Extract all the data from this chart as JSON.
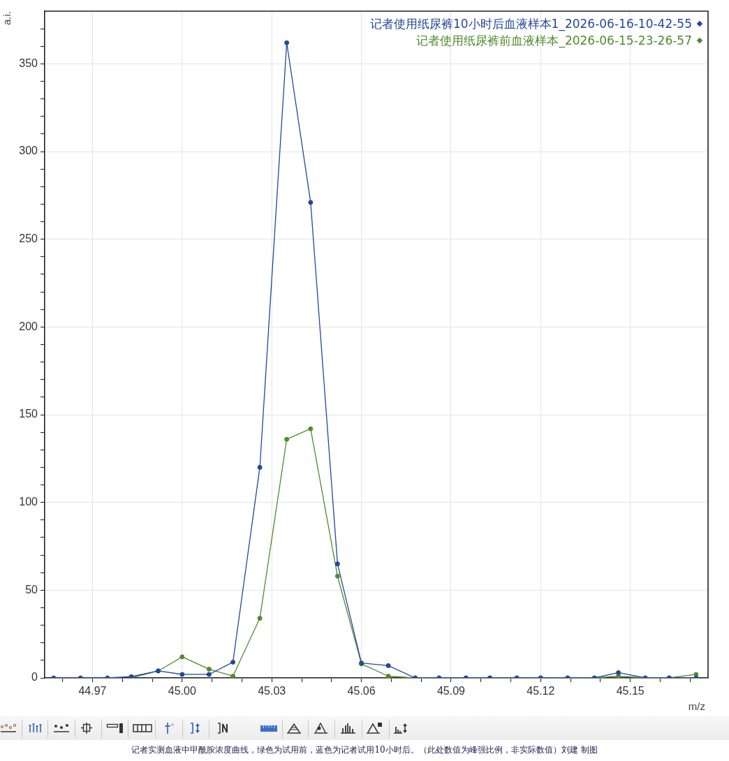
{
  "chart_data": {
    "type": "line",
    "ylabel": "a.i.",
    "xlabel": "m/z",
    "annotations": [
      "记者实测血液中甲酰胺浓度曲线，绿色为试用前，蓝色为记者试用10小时后。（此处数值为峰强比例，非实际数值）刘建 制图"
    ],
    "x": [
      44.957,
      44.966,
      44.975,
      44.983,
      44.992,
      45.0,
      45.009,
      45.017,
      45.026,
      45.035,
      45.043,
      45.052,
      45.06,
      45.069,
      45.078,
      45.086,
      45.095,
      45.103,
      45.112,
      45.12,
      45.129,
      45.138,
      45.146,
      45.155,
      45.163,
      45.172
    ],
    "series": [
      {
        "name": "记者使用纸尿裤10小时后血液样本1_2026-06-16-10-42-55",
        "color": "#23479a",
        "values": [
          0,
          0,
          0,
          0.7,
          4,
          2,
          2,
          9,
          120,
          362,
          271,
          65,
          8.5,
          7,
          0,
          0,
          0,
          0,
          0,
          0,
          0,
          0,
          3,
          0,
          0,
          0
        ]
      },
      {
        "name": "记者使用纸尿裤前血液样本_2026-06-15-23-26-57",
        "color": "#4f8c2d",
        "values": [
          null,
          null,
          null,
          0,
          4,
          12,
          5,
          1,
          34,
          136,
          142,
          58,
          8,
          1,
          0,
          0,
          0,
          0,
          0,
          0,
          0,
          0,
          1,
          0,
          0,
          2
        ]
      }
    ],
    "xlim": [
      44.954,
      45.176
    ],
    "ylim": [
      0,
      380
    ],
    "xticks": [
      {
        "value": 44.96,
        "label": null
      },
      44.97,
      {
        "value": 44.98,
        "label": null
      },
      {
        "value": 44.99,
        "label": null
      },
      {
        "value": 45,
        "label": "45.00"
      },
      {
        "value": 45.01,
        "label": null
      },
      {
        "value": 45.02,
        "label": null
      },
      45.03,
      {
        "value": 45.04,
        "label": null
      },
      {
        "value": 45.05,
        "label": null
      },
      45.06,
      {
        "value": 45.07,
        "label": null
      },
      {
        "value": 45.08,
        "label": null
      },
      45.09,
      {
        "value": 45.1,
        "label": null
      },
      {
        "value": 45.11,
        "label": null
      },
      45.12,
      {
        "value": 45.13,
        "label": null
      },
      {
        "value": 45.14,
        "label": null
      },
      45.15,
      {
        "value": 45.16,
        "label": null
      },
      {
        "value": 45.17,
        "label": null
      }
    ],
    "yticks": [
      0,
      {
        "value": 10,
        "label": null
      },
      {
        "value": 20,
        "label": null
      },
      {
        "value": 30,
        "label": null
      },
      {
        "value": 40,
        "label": null
      },
      50,
      {
        "value": 60,
        "label": null
      },
      {
        "value": 70,
        "label": null
      },
      {
        "value": 80,
        "label": null
      },
      {
        "value": 90,
        "label": null
      },
      100,
      {
        "value": 110,
        "label": null
      },
      {
        "value": 120,
        "label": null
      },
      {
        "value": 130,
        "label": null
      },
      {
        "value": 140,
        "label": null
      },
      150,
      {
        "value": 160,
        "label": null
      },
      {
        "value": 170,
        "label": null
      },
      {
        "value": 180,
        "label": null
      },
      {
        "value": 190,
        "label": null
      },
      200,
      {
        "value": 210,
        "label": null
      },
      {
        "value": 220,
        "label": null
      },
      {
        "value": 230,
        "label": null
      },
      {
        "value": 240,
        "label": null
      },
      250,
      {
        "value": 260,
        "label": null
      },
      {
        "value": 270,
        "label": null
      },
      {
        "value": 280,
        "label": null
      },
      {
        "value": 290,
        "label": null
      },
      300,
      {
        "value": 310,
        "label": null
      },
      {
        "value": 320,
        "label": null
      },
      {
        "value": 330,
        "label": null
      },
      {
        "value": 340,
        "label": null
      },
      350,
      {
        "value": 360,
        "label": null
      },
      {
        "value": 370,
        "label": null
      }
    ],
    "grid": true,
    "legend": "top right",
    "marker": "circle"
  }
}
